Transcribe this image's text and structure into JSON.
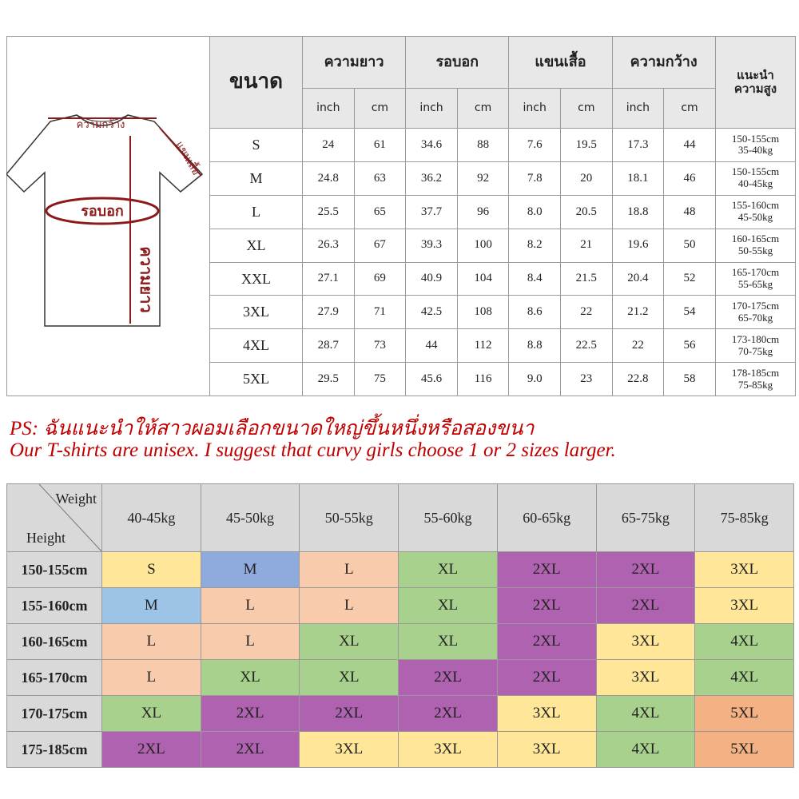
{
  "diagram": {
    "width": "ความกว้าง",
    "sleeve": "แขนเสื้อ",
    "chest": "รอบอก",
    "length": "ความยาว"
  },
  "size_table": {
    "header": "ขนาด",
    "groups": [
      "ความยาว",
      "รอบอก",
      "แขนเสื้อ",
      "ความกว้าง"
    ],
    "units": [
      "inch",
      "cm",
      "inch",
      "cm",
      "inch",
      "cm",
      "inch",
      "cm"
    ],
    "recommend": [
      "แนะนำ",
      "ความสูง"
    ],
    "rows": [
      {
        "size": "S",
        "values": [
          "24",
          "61",
          "34.6",
          "88",
          "7.6",
          "19.5",
          "17.3",
          "44"
        ],
        "height": "150-155cm",
        "weight": "35-40kg"
      },
      {
        "size": "M",
        "values": [
          "24.8",
          "63",
          "36.2",
          "92",
          "7.8",
          "20",
          "18.1",
          "46"
        ],
        "height": "150-155cm",
        "weight": "40-45kg"
      },
      {
        "size": "L",
        "values": [
          "25.5",
          "65",
          "37.7",
          "96",
          "8.0",
          "20.5",
          "18.8",
          "48"
        ],
        "height": "155-160cm",
        "weight": "45-50kg"
      },
      {
        "size": "XL",
        "values": [
          "26.3",
          "67",
          "39.3",
          "100",
          "8.2",
          "21",
          "19.6",
          "50"
        ],
        "height": "160-165cm",
        "weight": "50-55kg"
      },
      {
        "size": "XXL",
        "values": [
          "27.1",
          "69",
          "40.9",
          "104",
          "8.4",
          "21.5",
          "20.4",
          "52"
        ],
        "height": "165-170cm",
        "weight": "55-65kg"
      },
      {
        "size": "3XL",
        "values": [
          "27.9",
          "71",
          "42.5",
          "108",
          "8.6",
          "22",
          "21.2",
          "54"
        ],
        "height": "170-175cm",
        "weight": "65-70kg"
      },
      {
        "size": "4XL",
        "values": [
          "28.7",
          "73",
          "44",
          "112",
          "8.8",
          "22.5",
          "22",
          "56"
        ],
        "height": "173-180cm",
        "weight": "70-75kg"
      },
      {
        "size": "5XL",
        "values": [
          "29.5",
          "75",
          "45.6",
          "116",
          "9.0",
          "23",
          "22.8",
          "58"
        ],
        "height": "178-185cm",
        "weight": "75-85kg"
      }
    ]
  },
  "notes": [
    "PS:  ฉันแนะนำให้สาวผอมเลือกขนาดใหญ่ขึ้นหนึ่งหรือสองขนา",
    "Our T-shirts are unisex.  I suggest that curvy girls choose 1 or 2 sizes larger."
  ],
  "weight_table": {
    "weight_label": "Weight",
    "height_label": "Height",
    "weights": [
      "40-45kg",
      "45-50kg",
      "50-55kg",
      "55-60kg",
      "60-65kg",
      "65-75kg",
      "75-85kg"
    ],
    "rows": [
      {
        "height": "150-155cm",
        "cells": [
          {
            "text": "S",
            "color": "#ffe699"
          },
          {
            "text": "M",
            "color": "#8faadc"
          },
          {
            "text": "L",
            "color": "#f8cbad"
          },
          {
            "text": "XL",
            "color": "#a9d18e"
          },
          {
            "text": "2XL",
            "color": "#ae62b0"
          },
          {
            "text": "2XL",
            "color": "#ae62b0"
          },
          {
            "text": "3XL",
            "color": "#ffe699"
          }
        ]
      },
      {
        "height": "155-160cm",
        "cells": [
          {
            "text": "M",
            "color": "#9dc3e6"
          },
          {
            "text": "L",
            "color": "#f8cbad"
          },
          {
            "text": "L",
            "color": "#f8cbad"
          },
          {
            "text": "XL",
            "color": "#a9d18e"
          },
          {
            "text": "2XL",
            "color": "#ae62b0"
          },
          {
            "text": "2XL",
            "color": "#ae62b0"
          },
          {
            "text": "3XL",
            "color": "#ffe699"
          }
        ]
      },
      {
        "height": "160-165cm",
        "cells": [
          {
            "text": "L",
            "color": "#f8cbad"
          },
          {
            "text": "L",
            "color": "#f8cbad"
          },
          {
            "text": "XL",
            "color": "#a9d18e"
          },
          {
            "text": "XL",
            "color": "#a9d18e"
          },
          {
            "text": "2XL",
            "color": "#ae62b0"
          },
          {
            "text": "3XL",
            "color": "#ffe699"
          },
          {
            "text": "4XL",
            "color": "#a9d18e"
          }
        ]
      },
      {
        "height": "165-170cm",
        "cells": [
          {
            "text": "L",
            "color": "#f8cbad"
          },
          {
            "text": "XL",
            "color": "#a9d18e"
          },
          {
            "text": "XL",
            "color": "#a9d18e"
          },
          {
            "text": "2XL",
            "color": "#ae62b0"
          },
          {
            "text": "2XL",
            "color": "#ae62b0"
          },
          {
            "text": "3XL",
            "color": "#ffe699"
          },
          {
            "text": "4XL",
            "color": "#a9d18e"
          }
        ]
      },
      {
        "height": "170-175cm",
        "cells": [
          {
            "text": "XL",
            "color": "#a9d18e"
          },
          {
            "text": "2XL",
            "color": "#ae62b0"
          },
          {
            "text": "2XL",
            "color": "#ae62b0"
          },
          {
            "text": "2XL",
            "color": "#ae62b0"
          },
          {
            "text": "3XL",
            "color": "#ffe699"
          },
          {
            "text": "4XL",
            "color": "#a9d18e"
          },
          {
            "text": "5XL",
            "color": "#f4b183"
          }
        ]
      },
      {
        "height": "175-185cm",
        "cells": [
          {
            "text": "2XL",
            "color": "#ae62b0"
          },
          {
            "text": "2XL",
            "color": "#ae62b0"
          },
          {
            "text": "3XL",
            "color": "#ffe699"
          },
          {
            "text": "3XL",
            "color": "#ffe699"
          },
          {
            "text": "3XL",
            "color": "#ffe699"
          },
          {
            "text": "4XL",
            "color": "#a9d18e"
          },
          {
            "text": "5XL",
            "color": "#f4b183"
          }
        ]
      }
    ]
  }
}
